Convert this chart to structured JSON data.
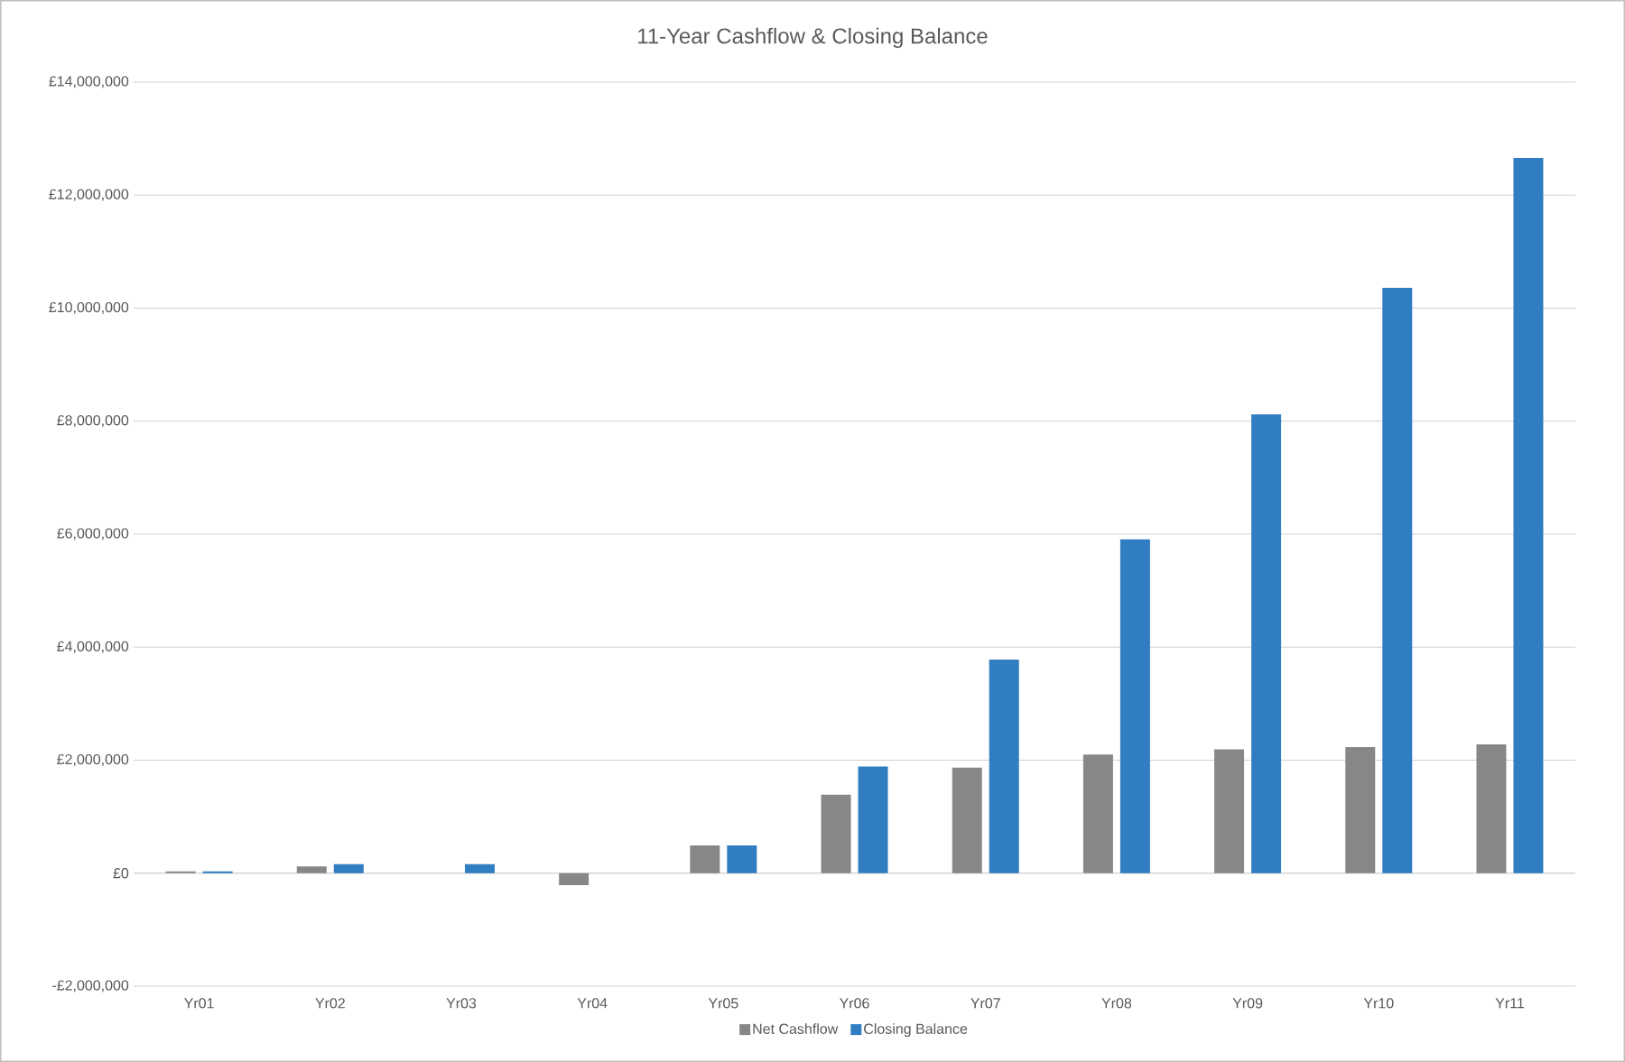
{
  "chart_data": {
    "type": "bar",
    "title": "11-Year  Cashflow & Closing Balance",
    "categories": [
      "Yr01",
      "Yr02",
      "Yr03",
      "Yr04",
      "Yr05",
      "Yr06",
      "Yr07",
      "Yr08",
      "Yr09",
      "Yr10",
      "Yr11"
    ],
    "series": [
      {
        "name": "Net Cashflow",
        "color": "#878787",
        "values": [
          30000,
          120000,
          0,
          -210000,
          490000,
          1390000,
          1870000,
          2100000,
          2190000,
          2230000,
          2280000
        ]
      },
      {
        "name": "Closing Balance",
        "color": "#317dc1",
        "values": [
          30000,
          160000,
          160000,
          0,
          490000,
          1890000,
          3780000,
          5910000,
          8120000,
          10360000,
          12660000
        ]
      }
    ],
    "ylim": [
      -2000000,
      14000000
    ],
    "yticks": [
      {
        "value": -2000000,
        "label": "-£2,000,000"
      },
      {
        "value": 0,
        "label": "£0"
      },
      {
        "value": 2000000,
        "label": "£2,000,000"
      },
      {
        "value": 4000000,
        "label": "£4,000,000"
      },
      {
        "value": 6000000,
        "label": "£6,000,000"
      },
      {
        "value": 8000000,
        "label": "£8,000,000"
      },
      {
        "value": 10000000,
        "label": "£10,000,000"
      },
      {
        "value": 12000000,
        "label": "£12,000,000"
      },
      {
        "value": 14000000,
        "label": "£14,000,000"
      }
    ],
    "grid": "y",
    "legend": "bottom"
  }
}
